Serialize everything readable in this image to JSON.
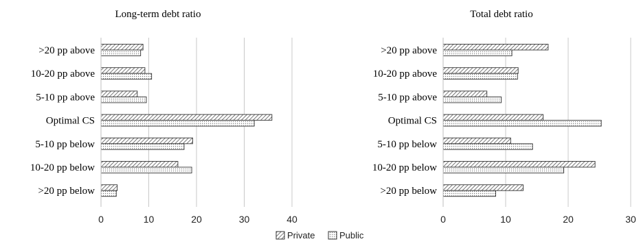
{
  "chart_data": [
    {
      "type": "bar",
      "orientation": "horizontal",
      "title": "Long-term debt ratio",
      "categories": [
        ">20 pp above",
        "10-20 pp above",
        "5-10 pp above",
        "Optimal CS",
        "5-10 pp below",
        "10-20 pp below",
        ">20 pp below"
      ],
      "series": [
        {
          "name": "Private",
          "values": [
            8.8,
            9.2,
            7.6,
            35.8,
            19.2,
            16.1,
            3.4
          ]
        },
        {
          "name": "Public",
          "values": [
            8.3,
            10.6,
            9.5,
            32.1,
            17.4,
            19.0,
            3.2
          ]
        }
      ],
      "xlim": [
        0,
        40
      ],
      "xticks": [
        0,
        10,
        20,
        30,
        40
      ],
      "grid": "vertical"
    },
    {
      "type": "bar",
      "orientation": "horizontal",
      "title": "Total debt ratio",
      "categories": [
        ">20 pp above",
        "10-20 pp above",
        "5-10 pp above",
        "Optimal CS",
        "5-10 pp below",
        "10-20 pp below",
        ">20 pp below"
      ],
      "series": [
        {
          "name": "Private",
          "values": [
            16.8,
            12.0,
            7.0,
            16.0,
            10.8,
            24.3,
            12.8
          ]
        },
        {
          "name": "Public",
          "values": [
            11.0,
            11.9,
            9.3,
            25.3,
            14.3,
            19.3,
            8.4
          ]
        }
      ],
      "xlim": [
        0,
        30
      ],
      "xticks": [
        0,
        10,
        20,
        30
      ],
      "grid": "vertical"
    }
  ],
  "legend": {
    "position": "bottom-center",
    "items": [
      {
        "name": "Private",
        "pattern": "diagonal-hatch"
      },
      {
        "name": "Public",
        "pattern": "dotted"
      }
    ]
  },
  "colors": {
    "bar_stroke": "#333333",
    "hatch": "#555555",
    "grid": "#c8c8c8"
  }
}
